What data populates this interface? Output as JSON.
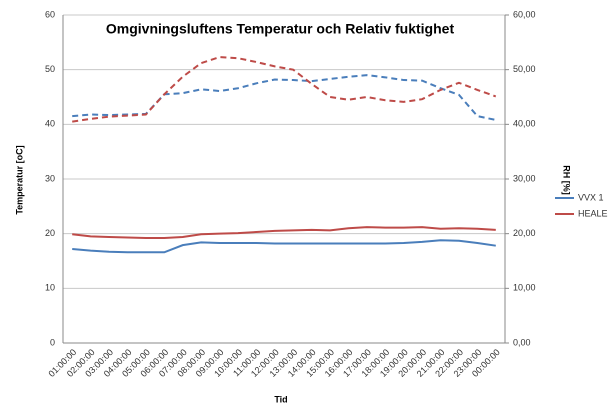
{
  "chart_data": {
    "type": "line",
    "title": "Omgivningsluftens Temperatur och Relativ fuktighet",
    "x_label": "Tid",
    "y_label": "Temperatur [oC]",
    "y2_label": "RH [%]",
    "categories": [
      "01:00:00",
      "02:00:00",
      "03:00:00",
      "04:00:00",
      "05:00:00",
      "06:00:00",
      "07:00:00",
      "08:00:00",
      "09:00:00",
      "10:00:00",
      "11:00:00",
      "12:00:00",
      "13:00:00",
      "14:00:00",
      "15:00:00",
      "16:00:00",
      "17:00:00",
      "18:00:00",
      "19:00:00",
      "20:00:00",
      "21:00:00",
      "22:00:00",
      "23:00:00",
      "00:00:00"
    ],
    "ylim": [
      0,
      60
    ],
    "yticks": [
      0,
      10,
      20,
      30,
      40,
      50,
      60
    ],
    "y2lim": [
      0,
      60
    ],
    "y2ticks": [
      {
        "value": 0,
        "label": "0,00"
      },
      {
        "value": 10,
        "label": "10,00"
      },
      {
        "value": 20,
        "label": "20,00"
      },
      {
        "value": 30,
        "label": "30,00"
      },
      {
        "value": 40,
        "label": "40,00"
      },
      {
        "value": 50,
        "label": "50,00"
      },
      {
        "value": 60,
        "label": "60,00"
      }
    ],
    "grid": true,
    "series": [
      {
        "name": "VVX 1",
        "color": "#4a7ebb",
        "dash": false,
        "values": [
          17.2,
          16.9,
          16.7,
          16.6,
          16.6,
          16.6,
          17.9,
          18.4,
          18.3,
          18.3,
          18.3,
          18.2,
          18.2,
          18.2,
          18.2,
          18.2,
          18.2,
          18.2,
          18.3,
          18.5,
          18.8,
          18.7,
          18.3,
          17.8
        ]
      },
      {
        "name": "HEALE",
        "color": "#be4b48",
        "dash": false,
        "values": [
          19.9,
          19.5,
          19.4,
          19.3,
          19.2,
          19.2,
          19.4,
          19.9,
          20.0,
          20.1,
          20.3,
          20.5,
          20.6,
          20.7,
          20.6,
          21.0,
          21.2,
          21.1,
          21.1,
          21.2,
          20.9,
          21.0,
          20.9,
          20.7
        ]
      },
      {
        "color": "#4a7ebb",
        "dash": true,
        "axis": "y2",
        "values": [
          41.5,
          41.8,
          41.7,
          41.8,
          41.9,
          45.5,
          45.7,
          46.4,
          46.1,
          46.6,
          47.5,
          48.2,
          48.1,
          47.9,
          48.3,
          48.7,
          49.0,
          48.6,
          48.1,
          48.0,
          46.6,
          45.4,
          41.5,
          40.8
        ]
      },
      {
        "color": "#be4b48",
        "dash": true,
        "axis": "y2",
        "values": [
          40.5,
          41.0,
          41.4,
          41.6,
          41.8,
          45.5,
          48.7,
          51.2,
          52.3,
          52.1,
          51.4,
          50.6,
          50.0,
          47.4,
          45.0,
          44.5,
          45.0,
          44.4,
          44.1,
          44.6,
          46.3,
          47.6,
          46.3,
          45.1
        ]
      }
    ]
  }
}
